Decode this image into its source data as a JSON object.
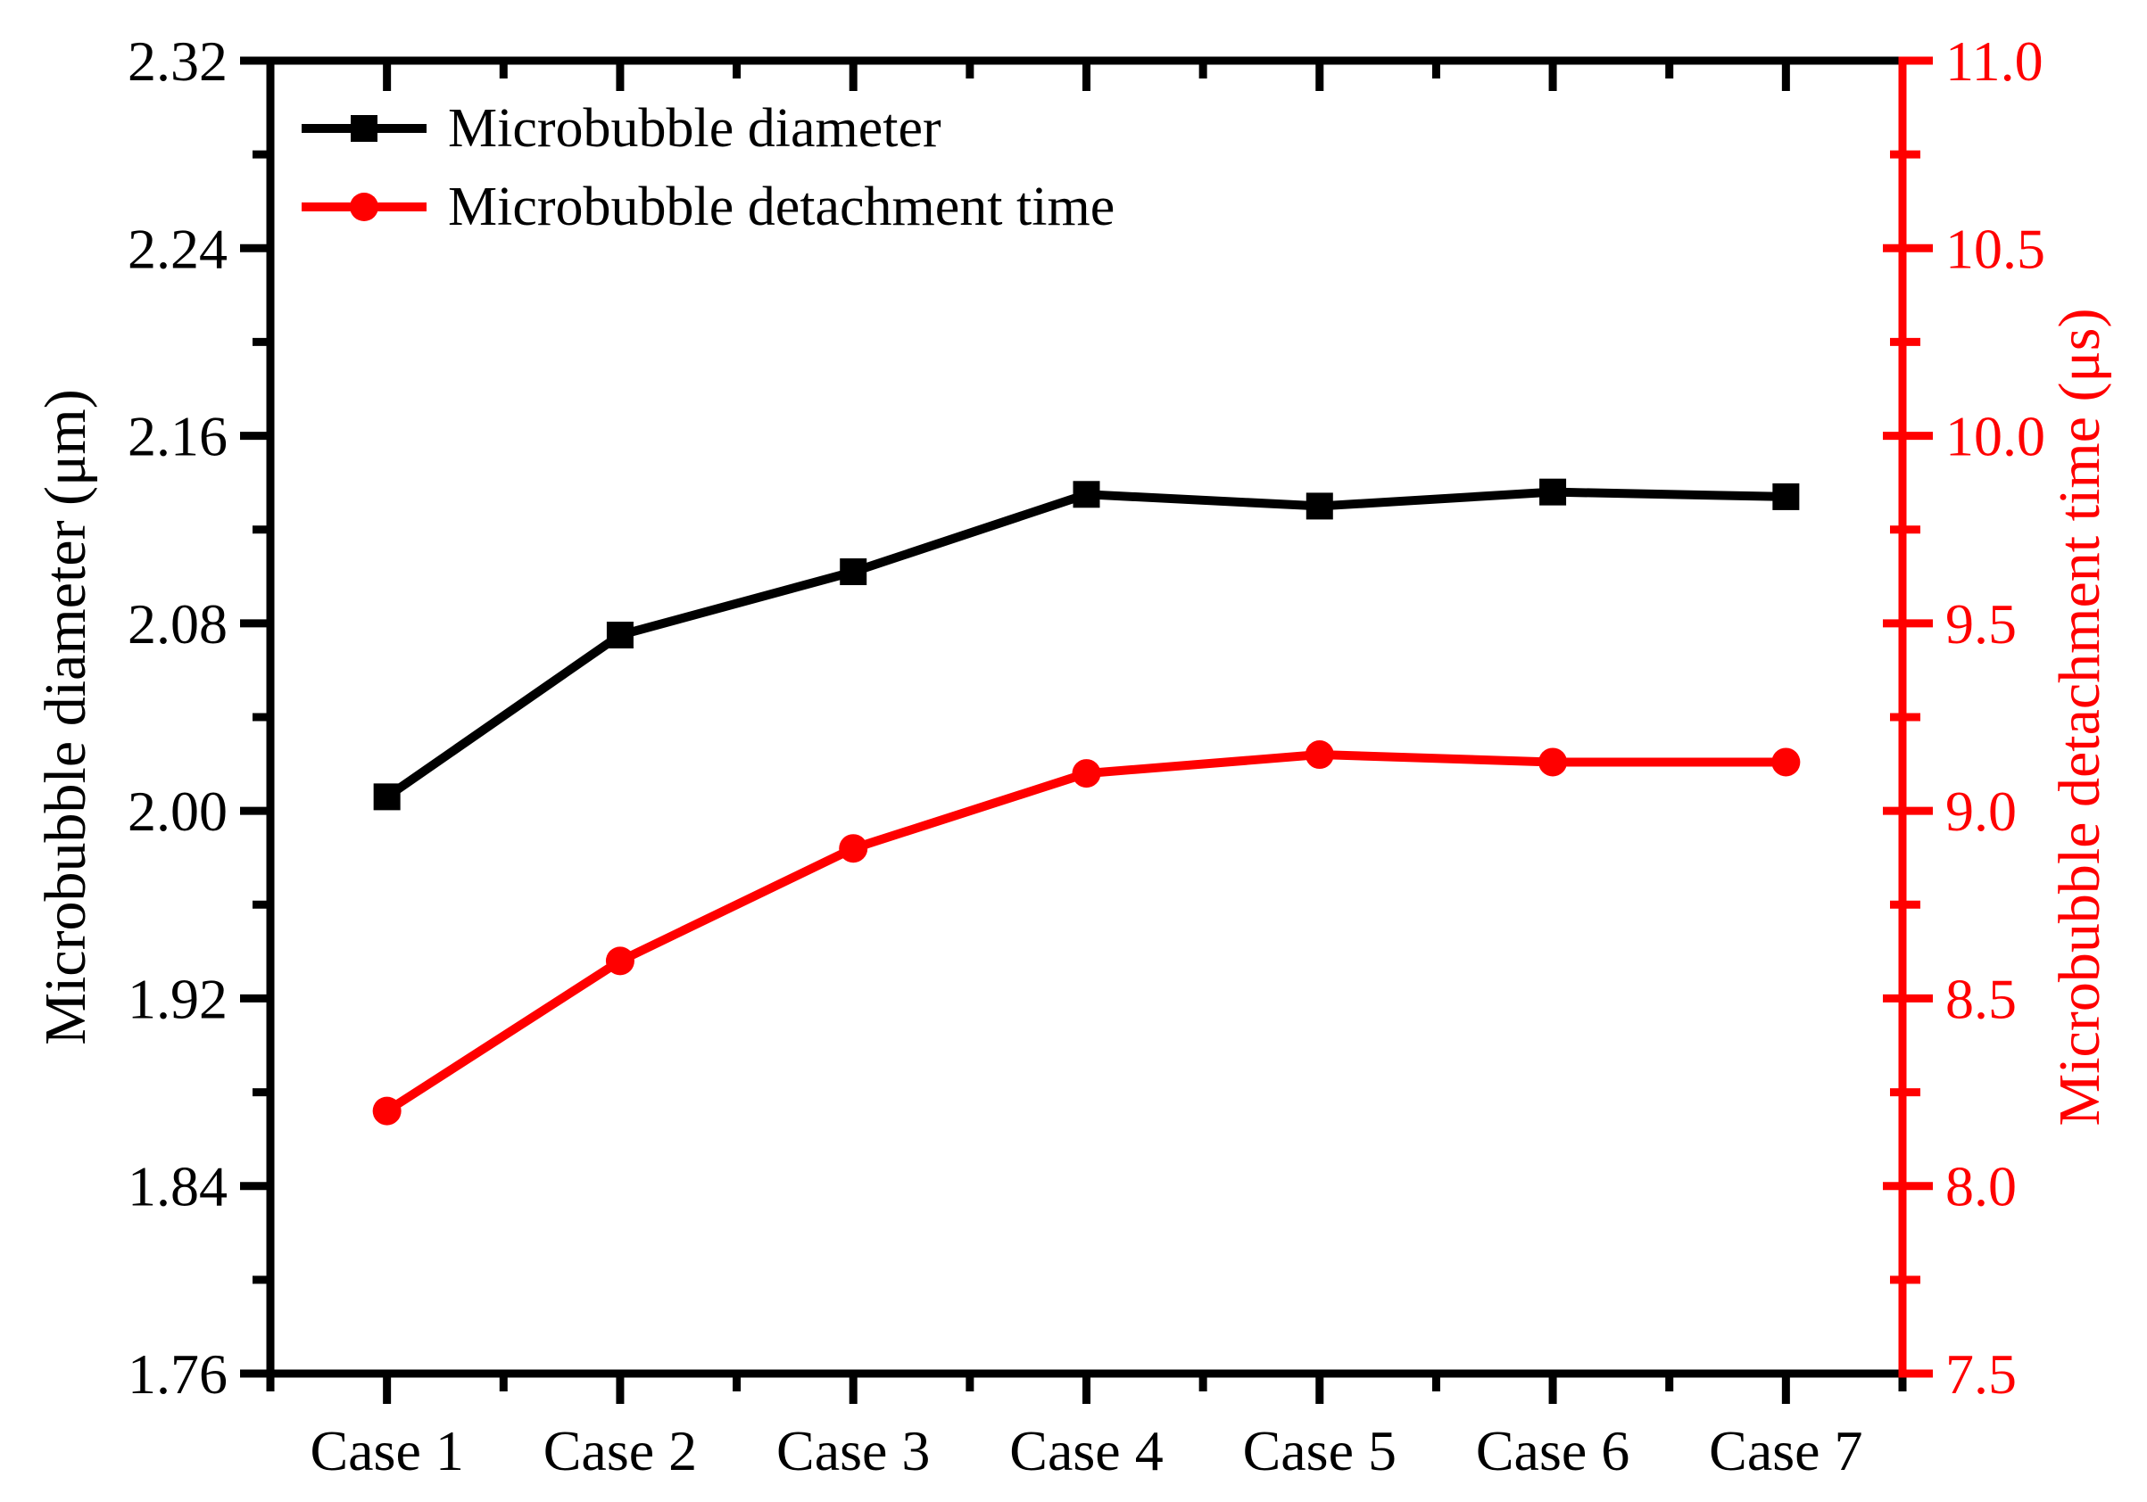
{
  "figure": {
    "background": "#ffffff"
  },
  "chart_data": {
    "type": "line",
    "categories": [
      "Case 1",
      "Case 2",
      "Case 3",
      "Case 4",
      "Case 5",
      "Case 6",
      "Case 7"
    ],
    "series": [
      {
        "name": "Microbubble diameter",
        "axis": "left",
        "color": "#000000",
        "marker": "square",
        "values": [
          2.006,
          2.075,
          2.102,
          2.135,
          2.13,
          2.136,
          2.134
        ]
      },
      {
        "name": "Microbubble detachment time",
        "axis": "right",
        "color": "#ff0000",
        "marker": "circle",
        "values": [
          8.2,
          8.6,
          8.9,
          9.1,
          9.15,
          9.13,
          9.13
        ]
      }
    ],
    "left_axis": {
      "label": "Microbubble diameter (μm)",
      "color": "#000000",
      "min": 1.76,
      "max": 2.32,
      "major_step": 0.08,
      "minor_step": 0.04,
      "tick_labels": [
        "2.32",
        "2.24",
        "2.16",
        "2.08",
        "2.00",
        "1.92",
        "1.84",
        "1.76"
      ]
    },
    "right_axis": {
      "label": "Microbubble detachment time (μs)",
      "color": "#ff0000",
      "min": 7.5,
      "max": 11.0,
      "major_step": 0.5,
      "minor_step": 0.25,
      "tick_labels": [
        "11.0",
        "10.5",
        "10.0",
        "9.5",
        "9.0",
        "8.5",
        "8.0",
        "7.5"
      ]
    },
    "x_axis": {
      "tick_labels": [
        "Case 1",
        "Case 2",
        "Case 3",
        "Case 4",
        "Case 5",
        "Case 6",
        "Case 7"
      ]
    },
    "legend": {
      "position": "top-left"
    },
    "grid": false
  }
}
